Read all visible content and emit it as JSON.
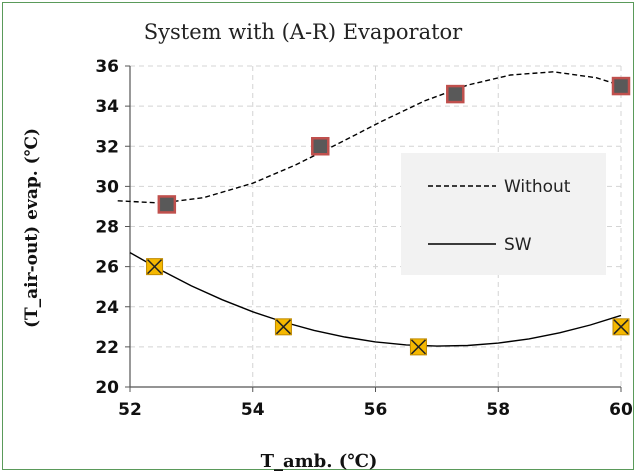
{
  "chart_data": {
    "type": "scatter",
    "title": "System with (A-R) Evaporator",
    "xlabel": "T_amb. (℃)",
    "ylabel": "(T_air-out) evap. (℃)",
    "xlim": [
      52,
      60
    ],
    "ylim": [
      20,
      36
    ],
    "x_ticks": [
      "52",
      "54",
      "56",
      "58",
      "60"
    ],
    "y_ticks": [
      "20",
      "22",
      "24",
      "26",
      "28",
      "30",
      "32",
      "34",
      "36"
    ],
    "grid": "dashed",
    "legend_placement": "center-right",
    "series": [
      {
        "name": "Without",
        "x": [
          52.6,
          55.1,
          57.3,
          60.0
        ],
        "y": [
          29.1,
          32.0,
          34.6,
          35.0
        ],
        "marker": "square",
        "marker_color": "#595959",
        "marker_edge": "#c0504d",
        "trendline": "dashed",
        "trend_x": [
          51.8,
          52.5,
          53.2,
          54.0,
          54.7,
          55.4,
          56.1,
          56.8,
          57.5,
          58.2,
          58.9,
          59.6,
          60.0
        ],
        "trend_y": [
          29.28,
          29.17,
          29.44,
          30.16,
          31.07,
          32.14,
          33.24,
          34.26,
          35.05,
          35.55,
          35.71,
          35.41,
          35.03
        ]
      },
      {
        "name": "SW",
        "x": [
          52.4,
          54.5,
          56.7,
          60.0
        ],
        "y": [
          26.0,
          23.0,
          22.0,
          23.0
        ],
        "marker": "x-square",
        "marker_color": "#f5b800",
        "marker_edge": "#c08a00",
        "trendline": "solid",
        "trend_x": [
          52.0,
          52.5,
          53.0,
          53.5,
          54.0,
          54.5,
          55.0,
          55.5,
          56.0,
          56.5,
          57.0,
          57.5,
          58.0,
          58.5,
          59.0,
          59.5,
          60.0
        ],
        "trend_y": [
          26.7,
          25.83,
          25.04,
          24.35,
          23.75,
          23.24,
          22.82,
          22.49,
          22.25,
          22.1,
          22.04,
          22.07,
          22.19,
          22.4,
          22.7,
          23.09,
          23.57
        ]
      }
    ]
  }
}
